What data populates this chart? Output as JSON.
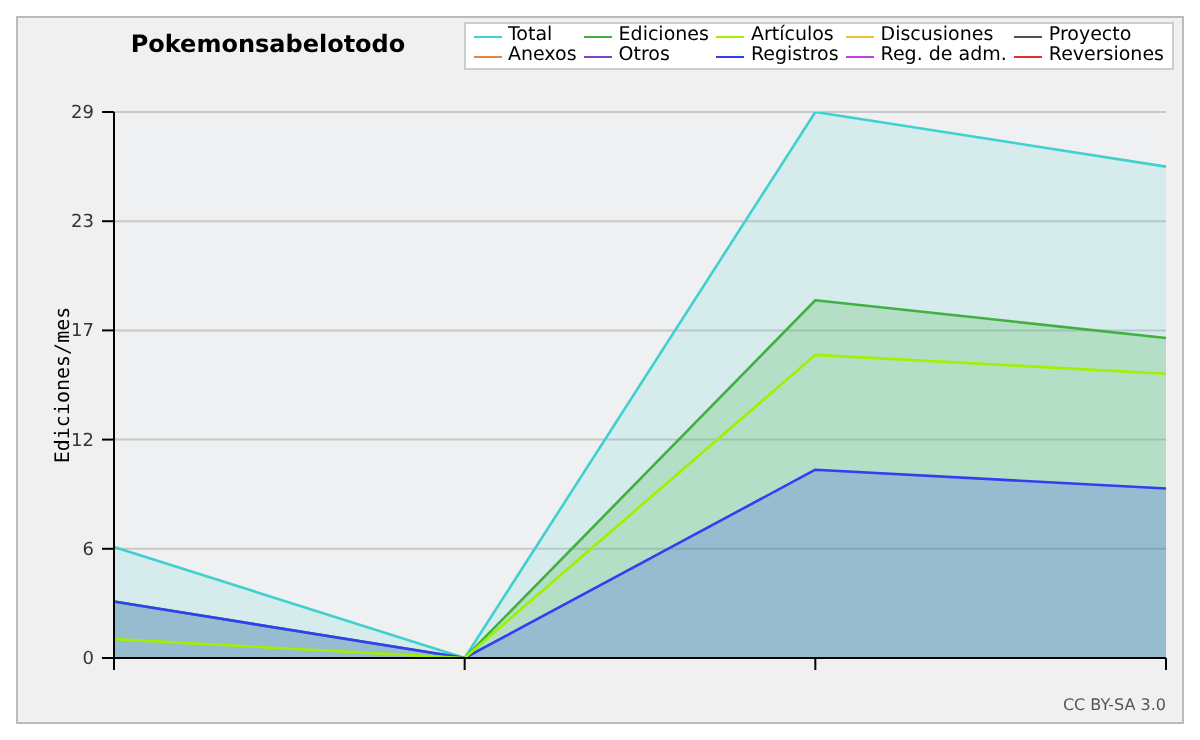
{
  "chart_data": {
    "type": "area",
    "title": "Pokemonsabelotodo",
    "ylabel": "Ediciones/mes",
    "annotations": [
      "CC BY-SA 3.0"
    ],
    "categories": [
      null,
      null,
      null,
      null
    ],
    "series": [
      {
        "name": "Total",
        "color": "#40d0d0",
        "values": [
          5.9,
          0,
          29,
          26.1
        ]
      },
      {
        "name": "Ediciones",
        "color": "#40b040",
        "values": [
          3,
          0,
          19,
          17
        ]
      },
      {
        "name": "Artículos",
        "type": "line",
        "color": "#a0f000",
        "values": [
          1,
          0,
          16.1,
          15.1
        ]
      },
      {
        "name": "Discusiones",
        "type": "line",
        "color": "#f0c030",
        "values": [
          null,
          null,
          null,
          null
        ]
      },
      {
        "name": "Proyecto",
        "type": "line",
        "color": "#505050",
        "values": [
          null,
          null,
          null,
          null
        ]
      },
      {
        "name": "Anexos",
        "type": "line",
        "color": "#f08040",
        "values": [
          null,
          null,
          null,
          null
        ]
      },
      {
        "name": "Otros",
        "type": "line",
        "color": "#8040d0",
        "values": [
          null,
          null,
          null,
          null
        ]
      },
      {
        "name": "Registros",
        "color": "#3040f0",
        "values": [
          3,
          0,
          10,
          9
        ]
      },
      {
        "name": "Reg. de adm.",
        "type": "line",
        "color": "#c040e0",
        "values": [
          null,
          null,
          null,
          null
        ]
      },
      {
        "name": "Reversiones",
        "type": "line",
        "color": "#e03030",
        "values": [
          null,
          null,
          null,
          null
        ]
      }
    ],
    "ylim": [
      0,
      29
    ],
    "yticks": [
      0,
      {
        "value": 5.8,
        "label": "6"
      },
      {
        "value": 11.6,
        "label": "12"
      },
      {
        "value": 17.4,
        "label": "17"
      },
      {
        "value": 23.2,
        "label": "23"
      },
      29
    ],
    "grid": "y",
    "legend": "top right"
  }
}
